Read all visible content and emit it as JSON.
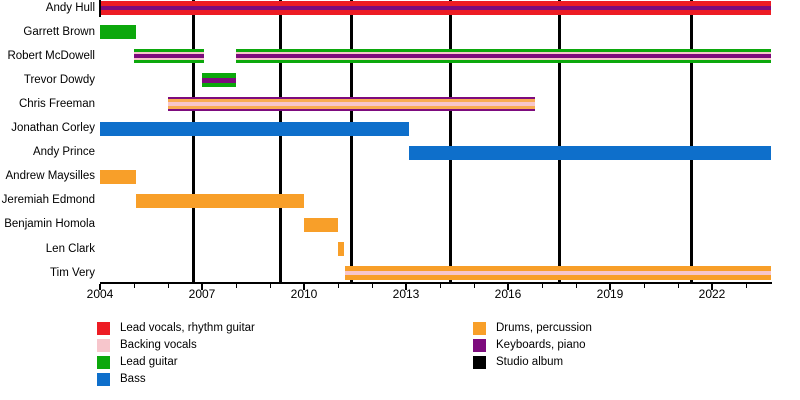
{
  "chart_data": {
    "type": "timeline",
    "x_axis": {
      "range_start": 2004,
      "range_end": 2023.74,
      "major_tick_labels": [
        "2004",
        "2007",
        "2010",
        "2013",
        "2016",
        "2019",
        "2022"
      ],
      "major_tick_years": [
        2004,
        2007,
        2010,
        2013,
        2016,
        2019,
        2022
      ],
      "minor_tick_interval": 1,
      "minor_tick_first": 2004,
      "minor_tick_last": 2023
    },
    "colors": {
      "red": "#ED1C24",
      "pink": "#F7C6CC",
      "green": "#0CA80C",
      "blue": "#0E6FCB",
      "orange": "#F89F29",
      "orange_light": "#F9AC52",
      "purple": "#7D0B7D",
      "black": "#000000"
    },
    "members": [
      {
        "name": "Andy Hull",
        "segments": [
          [
            2004.0,
            2023.74
          ]
        ],
        "pattern": [
          [
            "red",
            5
          ],
          [
            "purple",
            4
          ],
          [
            "red",
            5
          ]
        ]
      },
      {
        "name": "Garrett Brown",
        "segments": [
          [
            2004.0,
            2005.05
          ]
        ],
        "pattern": [
          [
            "green",
            1
          ]
        ]
      },
      {
        "name": "Robert McDowell",
        "segments": [
          [
            2005.0,
            2007.05
          ],
          [
            2008.0,
            2023.74
          ]
        ],
        "pattern": [
          [
            "green",
            3
          ],
          [
            "pink",
            2
          ],
          [
            "purple",
            4
          ],
          [
            "pink",
            2
          ],
          [
            "green",
            3
          ]
        ]
      },
      {
        "name": "Trevor Dowdy",
        "segments": [
          [
            2007.0,
            2008.0
          ]
        ],
        "pattern": [
          [
            "green",
            4
          ],
          [
            "purple",
            4
          ],
          [
            "green",
            4
          ]
        ]
      },
      {
        "name": "Chris Freeman",
        "segments": [
          [
            2006.0,
            2016.8
          ]
        ],
        "pattern": [
          [
            "purple",
            2
          ],
          [
            "orange_light",
            3
          ],
          [
            "pink",
            4
          ],
          [
            "orange_light",
            3
          ],
          [
            "purple",
            2
          ]
        ]
      },
      {
        "name": "Jonathan Corley",
        "segments": [
          [
            2004.0,
            2013.1
          ]
        ],
        "pattern": [
          [
            "blue",
            1
          ]
        ]
      },
      {
        "name": "Andy Prince",
        "segments": [
          [
            2013.1,
            2023.74
          ]
        ],
        "pattern": [
          [
            "blue",
            1
          ]
        ]
      },
      {
        "name": "Andrew Maysilles",
        "segments": [
          [
            2004.0,
            2005.05
          ]
        ],
        "pattern": [
          [
            "orange",
            1
          ]
        ]
      },
      {
        "name": "Jeremiah Edmond",
        "segments": [
          [
            2005.05,
            2010.0
          ]
        ],
        "pattern": [
          [
            "orange",
            1
          ]
        ]
      },
      {
        "name": "Benjamin Homola",
        "segments": [
          [
            2010.0,
            2011.0
          ]
        ],
        "pattern": [
          [
            "orange",
            1
          ]
        ]
      },
      {
        "name": "Len Clark",
        "segments": [
          [
            2011.0,
            2011.17
          ]
        ],
        "pattern": [
          [
            "orange",
            1
          ]
        ]
      },
      {
        "name": "Tim Very",
        "segments": [
          [
            2011.2,
            2023.74
          ]
        ],
        "pattern": [
          [
            "orange",
            4
          ],
          [
            "pink",
            4
          ],
          [
            "orange",
            4
          ]
        ]
      }
    ],
    "album_lines_years": [
      2006.75,
      2009.3,
      2011.4,
      2014.3,
      2017.5,
      2021.4
    ],
    "legend": {
      "columns": [
        [
          {
            "label": "Lead vocals, rhythm guitar",
            "color": "red"
          },
          {
            "label": "Backing vocals",
            "color": "pink"
          },
          {
            "label": "Lead guitar",
            "color": "green"
          },
          {
            "label": "Bass",
            "color": "blue"
          }
        ],
        [
          {
            "label": "Drums, percussion",
            "color": "orange"
          },
          {
            "label": "Keyboards, piano",
            "color": "purple"
          },
          {
            "label": "Studio album",
            "color": "black"
          }
        ]
      ]
    }
  }
}
